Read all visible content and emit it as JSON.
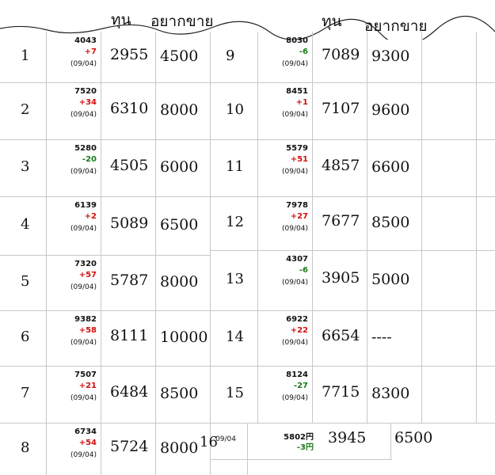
{
  "header": {
    "left": [
      "ทุน",
      "อยากขาย"
    ],
    "right": [
      "ทุน",
      "อยากขาย"
    ]
  },
  "rows": [
    {
      "num": "1",
      "price": "4043",
      "change": "+7",
      "date": "(09/04)",
      "cost": "2955",
      "sell": "4500"
    },
    {
      "num": "2",
      "price": "7520",
      "change": "+34",
      "date": "(09/04)",
      "cost": "6310",
      "sell": "8000"
    },
    {
      "num": "3",
      "price": "5280",
      "change": "-20",
      "date": "(09/04)",
      "cost": "4505",
      "sell": "6000"
    },
    {
      "num": "4",
      "price": "6139",
      "change": "+2",
      "date": "(09/04)",
      "cost": "5089",
      "sell": "6500"
    },
    {
      "num": "5",
      "price": "7320",
      "change": "+57",
      "date": "(09/04)",
      "cost": "5787",
      "sell": "8000"
    },
    {
      "num": "6",
      "price": "9382",
      "change": "+58",
      "date": "(09/04)",
      "cost": "8111",
      "sell": "10000"
    },
    {
      "num": "7",
      "price": "7507",
      "change": "+21",
      "date": "(09/04)",
      "cost": "6484",
      "sell": "8500"
    },
    {
      "num": "8",
      "price": "6734",
      "change": "+54",
      "date": "(09/04)",
      "cost": "5724",
      "sell": "8000"
    },
    {
      "num": "9",
      "price": "8030",
      "change": "-6",
      "date": "(09/04)",
      "cost": "7089",
      "sell": "9300"
    },
    {
      "num": "10",
      "price": "8451",
      "change": "+1",
      "date": "(09/04)",
      "cost": "7107",
      "sell": "9600"
    },
    {
      "num": "11",
      "price": "5579",
      "change": "+51",
      "date": "(09/04)",
      "cost": "4857",
      "sell": "6600"
    },
    {
      "num": "12",
      "price": "7978",
      "change": "+27",
      "date": "(09/04)",
      "cost": "7677",
      "sell": "8500"
    },
    {
      "num": "13",
      "price": "4307",
      "change": "-6",
      "date": "(09/04)",
      "cost": "3905",
      "sell": "5000"
    },
    {
      "num": "14",
      "price": "6922",
      "change": "+22",
      "date": "(09/04)",
      "cost": "6654",
      "sell": "----"
    },
    {
      "num": "15",
      "price": "8124",
      "change": "-27",
      "date": "(09/04)",
      "cost": "7715",
      "sell": "8300"
    },
    {
      "num": "16",
      "price": "5802円",
      "change": "-3円",
      "date": "09/04",
      "cost": "3945",
      "sell": "6500"
    }
  ]
}
